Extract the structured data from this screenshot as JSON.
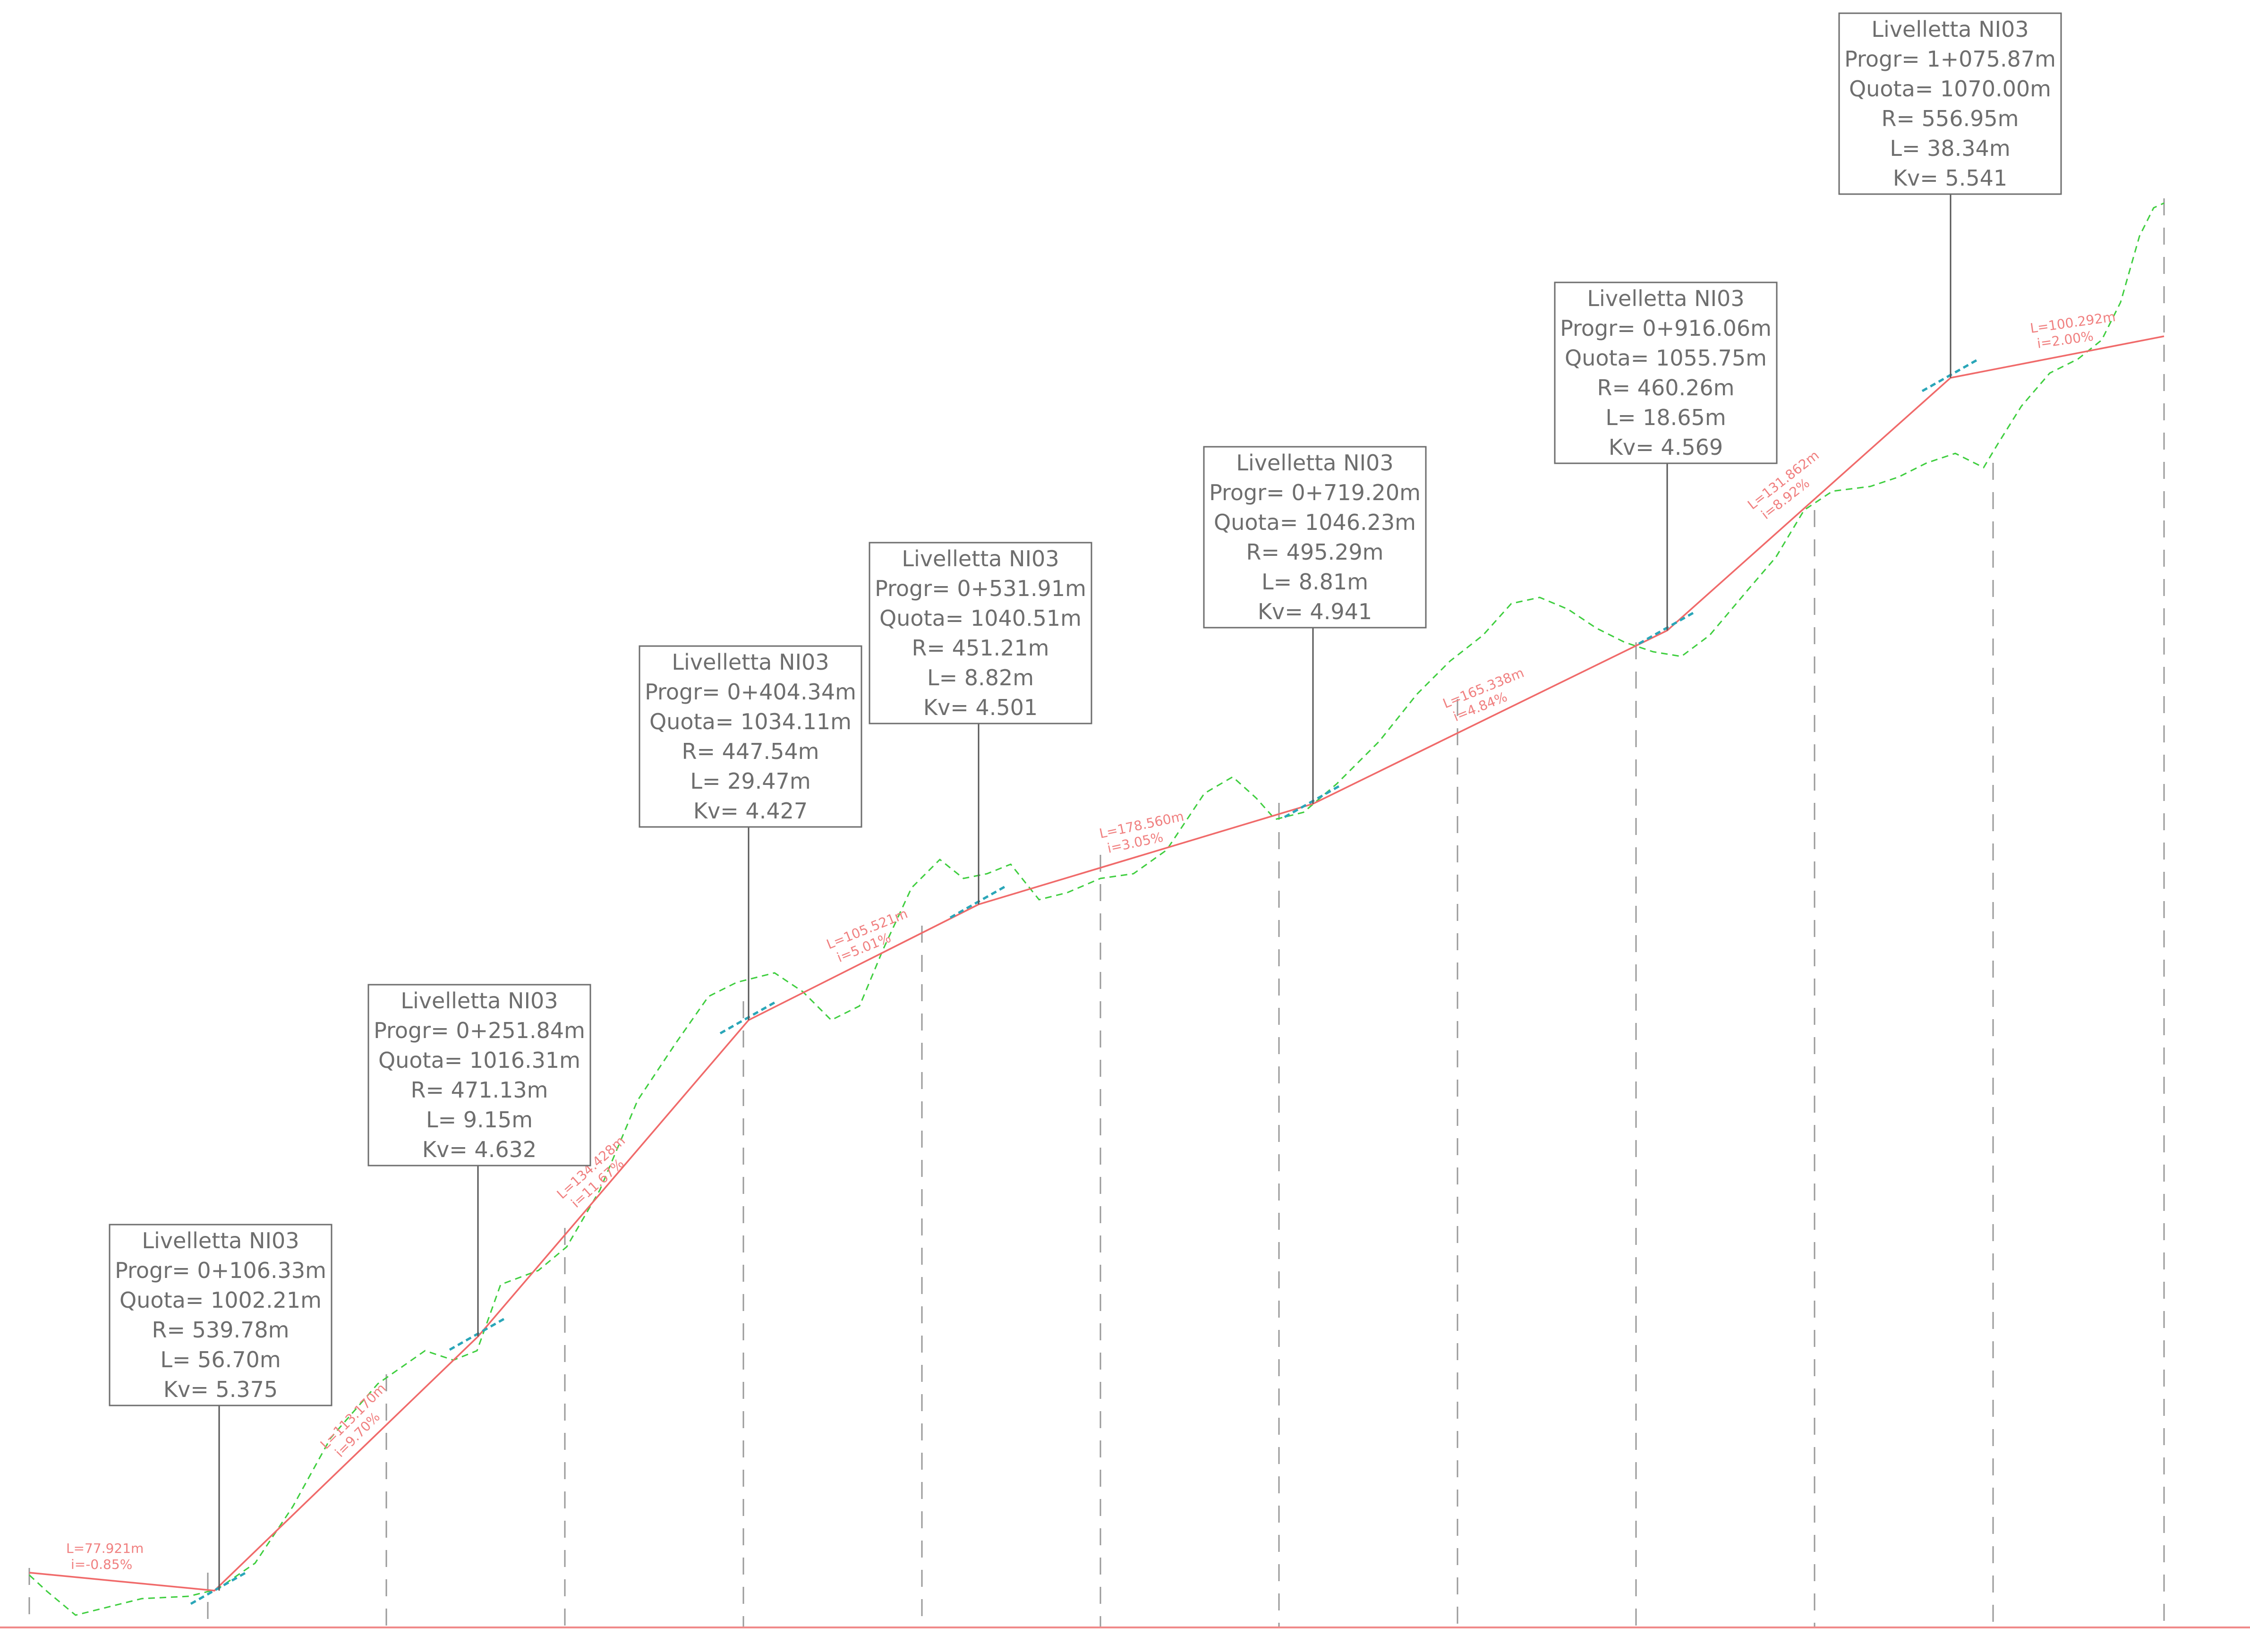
{
  "chart_data": {
    "type": "profile",
    "vertical_curves": [
      {
        "title": "Livelletta NI03",
        "progr": "Progr=  0+106.33m",
        "quota": "Quota=  1002.21m",
        "r": "R=  539.78m",
        "l": "L=  56.70m",
        "kv": "Kv=  5.375"
      },
      {
        "title": "Livelletta NI03",
        "progr": "Progr=  0+251.84m",
        "quota": "Quota=  1016.31m",
        "r": "R=  471.13m",
        "l": "L=  9.15m",
        "kv": "Kv=  4.632"
      },
      {
        "title": "Livelletta NI03",
        "progr": "Progr=  0+404.34m",
        "quota": "Quota=  1034.11m",
        "r": "R=  447.54m",
        "l": "L=  29.47m",
        "kv": "Kv=  4.427"
      },
      {
        "title": "Livelletta NI03",
        "progr": "Progr=  0+531.91m",
        "quota": "Quota=  1040.51m",
        "r": "R=  451.21m",
        "l": "L=  8.82m",
        "kv": "Kv=  4.501"
      },
      {
        "title": "Livelletta NI03",
        "progr": "Progr=  0+719.20m",
        "quota": "Quota=  1046.23m",
        "r": "R=  495.29m",
        "l": "L=  8.81m",
        "kv": "Kv=  4.941"
      },
      {
        "title": "Livelletta NI03",
        "progr": "Progr=  0+916.06m",
        "quota": "Quota=  1055.75m",
        "r": "R=  460.26m",
        "l": "L=  18.65m",
        "kv": "Kv=  4.569"
      },
      {
        "title": "Livelletta NI03",
        "progr": "Progr=  1+075.87m",
        "quota": "Quota=  1070.00m",
        "r": "R=  556.95m",
        "l": "L=  38.34m",
        "kv": "Kv=  5.541"
      }
    ],
    "grade_segments": [
      {
        "length": "L=77.921m",
        "slope": "i=-0.85%"
      },
      {
        "length": "L=113.170m",
        "slope": "i=9.70%"
      },
      {
        "length": "L=134.428m",
        "slope": "i=11.67%"
      },
      {
        "length": "L=105.521m",
        "slope": "i=5.01%"
      },
      {
        "length": "L=178.560m",
        "slope": "i=3.05%"
      },
      {
        "length": "L=165.338m",
        "slope": "i=4.84%"
      },
      {
        "length": "L=131.862m",
        "slope": "i=8.92%"
      },
      {
        "length": "L=100.292m",
        "slope": "i=2.00%"
      }
    ],
    "colors": {
      "grade_line": "#f06a6a",
      "ground_line": "#3fce3f",
      "vertical_curve": "#2aa6b8",
      "labels": "#6e6e6e"
    }
  }
}
